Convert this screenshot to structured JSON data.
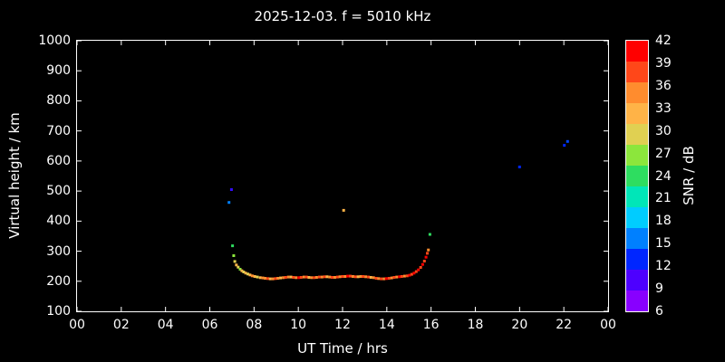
{
  "colors": {
    "background": "#000000",
    "foreground": "#ffffff"
  },
  "chart_data": {
    "type": "scatter",
    "title": "2025-12-03. f = 5010 kHz",
    "xlabel": "UT Time / hrs",
    "ylabel": "Virtual height / km",
    "xlim": [
      0,
      24
    ],
    "ylim": [
      100,
      1000
    ],
    "grid": false,
    "x_tick_values": [
      0,
      2,
      4,
      6,
      8,
      10,
      12,
      14,
      16,
      18,
      20,
      22,
      24
    ],
    "x_tick_labels": [
      "00",
      "02",
      "04",
      "06",
      "08",
      "10",
      "12",
      "14",
      "16",
      "18",
      "20",
      "22",
      "00"
    ],
    "y_tick_values": [
      100,
      200,
      300,
      400,
      500,
      600,
      700,
      800,
      900,
      1000
    ],
    "colorbar": {
      "label": "SNR / dB",
      "ticks": [
        6,
        9,
        12,
        15,
        18,
        21,
        24,
        27,
        30,
        33,
        36,
        39,
        42
      ],
      "colors": [
        "#8800ff",
        "#4d00ff",
        "#0026ff",
        "#0080ff",
        "#00ccff",
        "#00e6b8",
        "#2edd60",
        "#8ce63c",
        "#e0d052",
        "#ffb347",
        "#ff8c2e",
        "#ff4719",
        "#ff0000"
      ]
    },
    "point_format": [
      "ut_hours",
      "virtual_height_km",
      "snr_db"
    ],
    "points": [
      [
        6.87,
        462,
        15
      ],
      [
        6.98,
        505,
        10
      ],
      [
        7.03,
        318,
        24
      ],
      [
        7.08,
        285,
        27
      ],
      [
        7.13,
        266,
        30
      ],
      [
        7.2,
        254,
        33
      ],
      [
        7.28,
        247,
        30
      ],
      [
        7.37,
        240,
        27
      ],
      [
        7.45,
        235,
        33
      ],
      [
        7.53,
        231,
        30
      ],
      [
        7.62,
        227,
        33
      ],
      [
        7.72,
        224,
        30
      ],
      [
        7.82,
        221,
        33
      ],
      [
        7.92,
        218,
        36
      ],
      [
        8.03,
        216,
        33
      ],
      [
        8.15,
        214,
        30
      ],
      [
        8.28,
        212,
        33
      ],
      [
        8.4,
        211,
        36
      ],
      [
        8.5,
        210,
        36
      ],
      [
        8.62,
        209,
        39
      ],
      [
        8.73,
        208,
        33
      ],
      [
        8.85,
        208,
        36
      ],
      [
        8.97,
        209,
        39
      ],
      [
        9.08,
        210,
        36
      ],
      [
        9.2,
        211,
        33
      ],
      [
        9.32,
        212,
        36
      ],
      [
        9.43,
        213,
        39
      ],
      [
        9.55,
        214,
        36
      ],
      [
        9.67,
        214,
        33
      ],
      [
        9.78,
        213,
        39
      ],
      [
        9.9,
        212,
        36
      ],
      [
        10.02,
        212,
        42
      ],
      [
        10.13,
        213,
        39
      ],
      [
        10.25,
        214,
        36
      ],
      [
        10.37,
        214,
        39
      ],
      [
        10.48,
        213,
        33
      ],
      [
        10.6,
        212,
        36
      ],
      [
        10.72,
        212,
        39
      ],
      [
        10.83,
        213,
        36
      ],
      [
        10.95,
        214,
        39
      ],
      [
        11.07,
        214,
        36
      ],
      [
        11.18,
        215,
        39
      ],
      [
        11.3,
        215,
        33
      ],
      [
        11.42,
        214,
        36
      ],
      [
        11.53,
        213,
        39
      ],
      [
        11.65,
        213,
        36
      ],
      [
        11.77,
        214,
        39
      ],
      [
        11.88,
        215,
        36
      ],
      [
        12.0,
        216,
        39
      ],
      [
        12.05,
        436,
        33
      ],
      [
        12.12,
        216,
        36
      ],
      [
        12.23,
        217,
        42
      ],
      [
        12.35,
        217,
        39
      ],
      [
        12.47,
        216,
        36
      ],
      [
        12.58,
        215,
        39
      ],
      [
        12.7,
        215,
        33
      ],
      [
        12.82,
        216,
        36
      ],
      [
        12.93,
        216,
        39
      ],
      [
        13.05,
        215,
        36
      ],
      [
        13.17,
        214,
        39
      ],
      [
        13.28,
        213,
        33
      ],
      [
        13.4,
        212,
        36
      ],
      [
        13.52,
        210,
        39
      ],
      [
        13.63,
        209,
        36
      ],
      [
        13.75,
        208,
        39
      ],
      [
        13.87,
        208,
        36
      ],
      [
        13.98,
        209,
        42
      ],
      [
        14.1,
        210,
        39
      ],
      [
        14.22,
        211,
        36
      ],
      [
        14.33,
        213,
        39
      ],
      [
        14.45,
        214,
        36
      ],
      [
        14.57,
        215,
        42
      ],
      [
        14.68,
        216,
        39
      ],
      [
        14.8,
        217,
        36
      ],
      [
        14.92,
        218,
        39
      ],
      [
        15.03,
        220,
        42
      ],
      [
        15.13,
        223,
        39
      ],
      [
        15.23,
        227,
        42
      ],
      [
        15.33,
        232,
        39
      ],
      [
        15.43,
        238,
        42
      ],
      [
        15.53,
        246,
        39
      ],
      [
        15.62,
        256,
        42
      ],
      [
        15.7,
        267,
        39
      ],
      [
        15.77,
        280,
        42
      ],
      [
        15.83,
        293,
        39
      ],
      [
        15.88,
        304,
        36
      ],
      [
        15.95,
        356,
        24
      ],
      [
        20.0,
        580,
        12
      ],
      [
        22.02,
        652,
        12
      ],
      [
        22.17,
        665,
        13
      ]
    ]
  }
}
